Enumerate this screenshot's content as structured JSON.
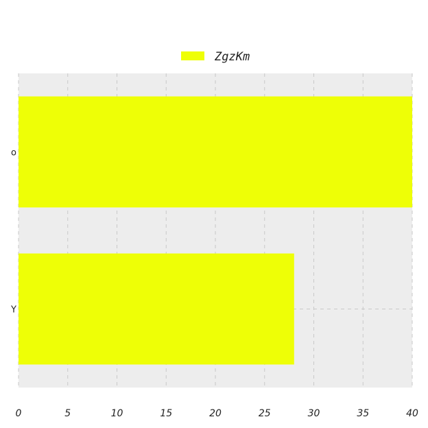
{
  "chart_data": {
    "type": "bar",
    "orientation": "horizontal",
    "title": "",
    "xlabel": "",
    "ylabel": "",
    "categories": [
      "o",
      "Y"
    ],
    "series": [
      {
        "name": "ZgzKm",
        "values": [
          40,
          28
        ],
        "color": "#eeff06"
      }
    ],
    "xlim": [
      0,
      40
    ],
    "xticks": [
      0,
      5,
      10,
      15,
      20,
      25,
      30,
      35,
      40
    ],
    "grid": true,
    "legend_position": "top-center",
    "colors": {
      "plot_background": "#ededed",
      "grid": "#c8c8c8",
      "text": "#222222"
    }
  }
}
